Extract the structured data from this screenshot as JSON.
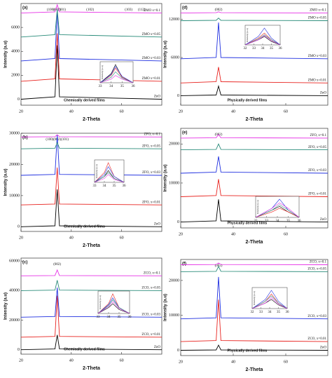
{
  "chart_data": [
    {
      "type": "line",
      "label": "(a)",
      "caption": "Chemically derived films",
      "xlabel": "2-Theta",
      "ylabel": "Intensity (a.u)",
      "annotations": [
        "(100)",
        "(002)",
        "(101)",
        "(102)",
        "(103)",
        "(112)"
      ],
      "xlim": [
        20,
        76
      ],
      "xticks": [
        20,
        40,
        60
      ],
      "ylim": [
        -500,
        8000
      ],
      "yticks": [
        0,
        2000,
        4000,
        6000
      ],
      "x": [
        20,
        33.5,
        34.4,
        35.3,
        76
      ],
      "series": [
        {
          "name": "ZnO",
          "color": "#000000",
          "values": [
            0,
            200,
            4500,
            200,
            0
          ]
        },
        {
          "name": "ZMO x=0.01",
          "color": "#e8231f",
          "values": [
            1500,
            1700,
            5500,
            1700,
            1500
          ]
        },
        {
          "name": "ZMO x=0.03",
          "color": "#1f2fe0",
          "values": [
            3200,
            3400,
            7500,
            3400,
            3200
          ]
        },
        {
          "name": "ZMO x=0.05",
          "color": "#2a8c7a",
          "values": [
            5200,
            5400,
            7500,
            5400,
            5200
          ]
        },
        {
          "name": "ZMO x=0.1",
          "color": "#e632e6",
          "values": [
            7200,
            7300,
            7900,
            7300,
            7200
          ]
        }
      ],
      "inset": {
        "ylabel": "Intensity (a.u)",
        "xlim": [
          33,
          36
        ],
        "xticks": [
          33,
          34,
          35,
          36
        ],
        "x": [
          33,
          34,
          34.4,
          35,
          36
        ],
        "series": [
          {
            "values": [
              0,
              0.5,
              1,
              0.3,
              0
            ]
          },
          {
            "values": [
              0,
              0.4,
              0.8,
              0.3,
              0
            ]
          },
          {
            "values": [
              0,
              0.45,
              0.9,
              0.35,
              0
            ]
          },
          {
            "values": [
              0,
              0.3,
              0.6,
              0.25,
              0
            ]
          },
          {
            "values": [
              0,
              0.2,
              0.4,
              0.2,
              0
            ]
          }
        ]
      }
    },
    {
      "type": "line",
      "label": "(d)",
      "caption": "Physically derived films",
      "xlabel": "2-Theta",
      "ylabel": "Intensity (a.u)",
      "annotations": [
        "(002)"
      ],
      "xlim": [
        20,
        76
      ],
      "xticks": [
        20,
        40,
        60
      ],
      "ylim": [
        -1500,
        14500
      ],
      "yticks": [
        0,
        6000,
        12000
      ],
      "x": [
        20,
        33.5,
        34.4,
        35.3,
        76
      ],
      "series": [
        {
          "name": "ZnO",
          "color": "#000000",
          "values": [
            0,
            100,
            1500,
            100,
            0
          ]
        },
        {
          "name": "ZMO x=0.01",
          "color": "#e8231f",
          "values": [
            2000,
            2200,
            4500,
            2200,
            2000
          ]
        },
        {
          "name": "ZMO x=0.03",
          "color": "#1f2fe0",
          "values": [
            5800,
            6000,
            11500,
            6000,
            5800
          ]
        },
        {
          "name": "ZMO x=0.05",
          "color": "#2a8c7a",
          "values": [
            11800,
            11850,
            12200,
            11850,
            11800
          ]
        },
        {
          "name": "ZMO x=0.1",
          "color": "#e632e6",
          "values": [
            13000,
            13050,
            13200,
            13050,
            13000
          ]
        }
      ],
      "inset": {
        "ylabel": "Intensity (a.u)",
        "xlim": [
          32,
          36
        ],
        "xticks": [
          32,
          33,
          34,
          35,
          36
        ],
        "x": [
          32,
          33.5,
          34.2,
          35,
          36
        ],
        "series": [
          {
            "values": [
              0,
              0.3,
              0.5,
              0.2,
              0
            ]
          },
          {
            "values": [
              0,
              0.4,
              0.7,
              0.3,
              0
            ]
          },
          {
            "values": [
              0,
              0.5,
              1,
              0.4,
              0
            ]
          },
          {
            "values": [
              0,
              0.35,
              0.6,
              0.3,
              0
            ]
          },
          {
            "values": [
              0,
              0.3,
              0.55,
              0.25,
              0
            ]
          }
        ]
      }
    },
    {
      "type": "line",
      "label": "(b)",
      "caption": "Chemically derived films",
      "xlabel": "2-Theta",
      "ylabel": "Intensity (a.u)",
      "annotations": [
        "(100)(002)(101)"
      ],
      "xlim": [
        20,
        76
      ],
      "xticks": [
        20,
        40,
        60
      ],
      "ylim": [
        -1500,
        30000
      ],
      "yticks": [
        0,
        10000,
        20000,
        30000
      ],
      "x": [
        20,
        33.5,
        34.4,
        35.3,
        76
      ],
      "series": [
        {
          "name": "ZnO",
          "color": "#000000",
          "values": [
            0,
            300,
            12000,
            300,
            0
          ]
        },
        {
          "name": "ZFO, x=0.01",
          "color": "#e8231f",
          "values": [
            7000,
            7300,
            19000,
            7300,
            7000
          ]
        },
        {
          "name": "ZFO, x=0.03",
          "color": "#1f2fe0",
          "values": [
            16500,
            16800,
            29500,
            16800,
            16500
          ]
        },
        {
          "name": "ZFO, x=0.05",
          "color": "#2a8c7a",
          "values": [
            25000,
            25200,
            27000,
            25200,
            25000
          ]
        },
        {
          "name": "ZFO, x=0.1",
          "color": "#e632e6",
          "values": [
            28800,
            28900,
            29500,
            28900,
            28800
          ]
        }
      ],
      "inset": {
        "ylabel": "Intensity (a.u)",
        "xlim": [
          33,
          36
        ],
        "xticks": [
          33,
          34,
          35,
          36
        ],
        "x": [
          33,
          34,
          34.4,
          35,
          36
        ],
        "series": [
          {
            "values": [
              0,
              0.3,
              0.6,
              0.2,
              0
            ]
          },
          {
            "values": [
              0,
              0.5,
              1,
              0.3,
              0
            ]
          },
          {
            "values": [
              0,
              0.4,
              0.8,
              0.3,
              0
            ]
          },
          {
            "values": [
              0,
              0.3,
              0.5,
              0.2,
              0
            ]
          },
          {
            "values": [
              0,
              0.2,
              0.4,
              0.15,
              0
            ]
          }
        ]
      }
    },
    {
      "type": "line",
      "label": "(e)",
      "caption": "Physically derived films",
      "xlabel": "2-Theta",
      "ylabel": "Intensity (a.u)",
      "annotations": [
        "(002)"
      ],
      "xlim": [
        20,
        76
      ],
      "xticks": [
        20,
        40,
        60
      ],
      "ylim": [
        -1500,
        24000
      ],
      "yticks": [
        0,
        10000,
        20000
      ],
      "x": [
        20,
        33.5,
        34.4,
        35.3,
        76
      ],
      "series": [
        {
          "name": "ZnO",
          "color": "#000000",
          "values": [
            0,
            300,
            5800,
            300,
            0
          ]
        },
        {
          "name": "ZFO, x=0.01",
          "color": "#e8231f",
          "values": [
            6500,
            6800,
            11000,
            6800,
            6500
          ]
        },
        {
          "name": "ZFO, x=0.03",
          "color": "#1f2fe0",
          "values": [
            12500,
            12800,
            16800,
            12800,
            12500
          ]
        },
        {
          "name": "ZFO, x=0.05",
          "color": "#2a8c7a",
          "values": [
            18500,
            18600,
            20000,
            18600,
            18500
          ]
        },
        {
          "name": "ZFO, x=0.1",
          "color": "#e632e6",
          "values": [
            21500,
            21600,
            22400,
            21600,
            21500
          ]
        }
      ],
      "inset": {
        "ylabel": "Intensity (a.u)",
        "xlim": [
          32,
          36
        ],
        "xticks": [
          32,
          33,
          34,
          35,
          36
        ],
        "x": [
          32,
          33.5,
          34.2,
          35,
          36
        ],
        "series": [
          {
            "values": [
              0,
              0.4,
              0.6,
              0.3,
              0
            ]
          },
          {
            "values": [
              0,
              0.3,
              0.5,
              0.3,
              0
            ]
          },
          {
            "values": [
              0,
              0.5,
              1,
              0.4,
              0
            ]
          },
          {
            "values": [
              0,
              0.4,
              0.7,
              0.4,
              0
            ]
          },
          {
            "values": [
              0,
              0.5,
              0.8,
              0.5,
              0
            ]
          }
        ]
      }
    },
    {
      "type": "line",
      "label": "(c)",
      "caption": "Chemically derived films",
      "xlabel": "2-Theta",
      "ylabel": "Intensity (a.u)",
      "annotations": [
        "(002)"
      ],
      "xlim": [
        20,
        76
      ],
      "xticks": [
        20,
        40,
        60
      ],
      "ylim": [
        -3000,
        62000
      ],
      "yticks": [
        0,
        20000,
        40000,
        60000
      ],
      "x": [
        20,
        33.5,
        34.4,
        35.3,
        76
      ],
      "series": [
        {
          "name": "ZnO",
          "color": "#000000",
          "values": [
            0,
            500,
            10000,
            500,
            0
          ]
        },
        {
          "name": "ZCO, x=0.01",
          "color": "#e8231f",
          "values": [
            8500,
            9000,
            36500,
            9000,
            8500
          ]
        },
        {
          "name": "ZCO, x=0.03",
          "color": "#1f2fe0",
          "values": [
            22000,
            22500,
            42000,
            22500,
            22000
          ]
        },
        {
          "name": "ZCO, x=0.05",
          "color": "#2a8c7a",
          "values": [
            40000,
            40300,
            47000,
            40300,
            40000
          ]
        },
        {
          "name": "ZCO, x=0.1",
          "color": "#e632e6",
          "values": [
            50000,
            50200,
            54000,
            50200,
            50000
          ]
        }
      ],
      "inset": {
        "ylabel": "Intensity (a.u)",
        "xlim": [
          33,
          36
        ],
        "xticks": [
          33,
          34,
          35,
          36
        ],
        "x": [
          33,
          34,
          34.4,
          35,
          36
        ],
        "series": [
          {
            "values": [
              0,
              0.3,
              0.5,
              0.2,
              0
            ]
          },
          {
            "values": [
              0,
              0.5,
              1,
              0.3,
              0
            ]
          },
          {
            "values": [
              0,
              0.45,
              0.8,
              0.3,
              0
            ]
          },
          {
            "values": [
              0,
              0.4,
              0.7,
              0.3,
              0
            ]
          },
          {
            "values": [
              0,
              0.35,
              0.6,
              0.25,
              0
            ]
          }
        ]
      }
    },
    {
      "type": "line",
      "label": "(f)",
      "caption": "Physically derived films",
      "xlabel": "2-Theta",
      "ylabel": "Intensity (a.u)",
      "annotations": [
        "(002)"
      ],
      "xlim": [
        20,
        76
      ],
      "xticks": [
        20,
        40,
        60
      ],
      "ylim": [
        -1500,
        26000
      ],
      "yticks": [
        0,
        10000,
        20000
      ],
      "x": [
        20,
        33.5,
        34.4,
        35.3,
        76
      ],
      "series": [
        {
          "name": "ZnO",
          "color": "#000000",
          "values": [
            0,
            100,
            1500,
            100,
            0
          ]
        },
        {
          "name": "ZCO, x=0.01",
          "color": "#e8231f",
          "values": [
            2500,
            2800,
            14500,
            2800,
            2500
          ]
        },
        {
          "name": "ZCO, x=0.03",
          "color": "#1f2fe0",
          "values": [
            9000,
            9300,
            21000,
            9300,
            9000
          ]
        },
        {
          "name": "ZCO, x=0.05",
          "color": "#2a8c7a",
          "values": [
            22500,
            22600,
            24000,
            22600,
            22500
          ]
        },
        {
          "name": "ZCO, x=0.1",
          "color": "#e632e6",
          "values": [
            24500,
            24550,
            25000,
            24550,
            24500
          ]
        }
      ],
      "inset": {
        "ylabel": "Intensity (a.u)",
        "xlim": [
          32,
          36
        ],
        "xticks": [
          32,
          33,
          34,
          35,
          36
        ],
        "x": [
          32,
          33.5,
          34.2,
          35,
          36
        ],
        "series": [
          {
            "values": [
              0,
              0.3,
              0.5,
              0.2,
              0
            ]
          },
          {
            "values": [
              0,
              0.4,
              0.8,
              0.3,
              0
            ]
          },
          {
            "values": [
              0,
              0.5,
              1,
              0.4,
              0
            ]
          },
          {
            "values": [
              0,
              0.4,
              0.7,
              0.3,
              0
            ]
          },
          {
            "values": [
              0,
              0.3,
              0.6,
              0.25,
              0
            ]
          }
        ]
      }
    }
  ]
}
